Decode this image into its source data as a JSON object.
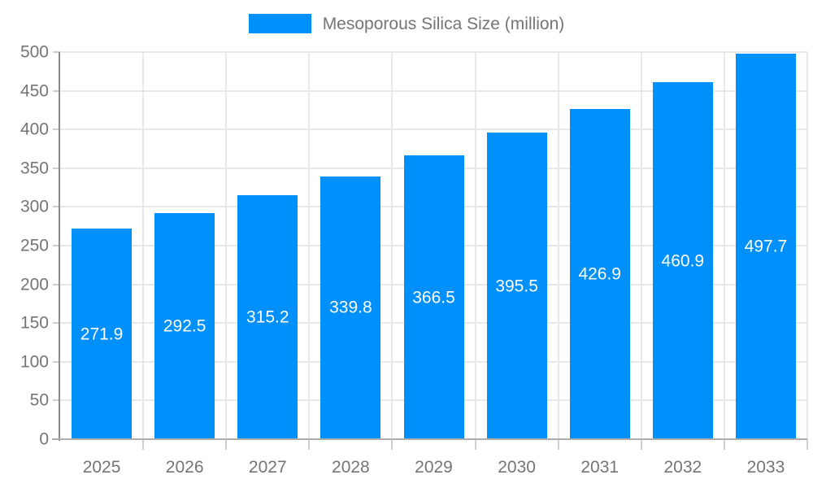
{
  "chart_data": {
    "type": "bar",
    "title": "Mesoporous Silica Size (million)",
    "categories": [
      "2025",
      "2026",
      "2027",
      "2028",
      "2029",
      "2030",
      "2031",
      "2032",
      "2033"
    ],
    "series": [
      {
        "name": "Mesoporous Silica Size (million)",
        "values": [
          271.9,
          292.5,
          315.2,
          339.8,
          366.5,
          395.5,
          426.9,
          460.9,
          497.7
        ]
      }
    ],
    "value_labels": [
      "271.9",
      "292.5",
      "315.2",
      "339.8",
      "366.5",
      "395.5",
      "426.9",
      "460.9",
      "497.7"
    ],
    "xlabel": "",
    "ylabel": "",
    "ylim": [
      0,
      500
    ],
    "yticks": [
      0,
      50,
      100,
      150,
      200,
      250,
      300,
      350,
      400,
      450,
      500
    ],
    "ytick_labels": [
      "0",
      "50",
      "100",
      "150",
      "200",
      "250",
      "300",
      "350",
      "400",
      "450",
      "500"
    ],
    "grid": true,
    "legend_position": "top-center",
    "colors": {
      "bar": "#0090FB",
      "grid": "#E8E8E8",
      "axis_y_line": "#8A8A8A",
      "axis_x_line": "#ADADAD",
      "tick_mark": "#CFCFCF",
      "tick_label": "#757575",
      "value_label": "#FFFFFF",
      "legend_text": "#757575",
      "background": "#FFFFFF"
    }
  }
}
